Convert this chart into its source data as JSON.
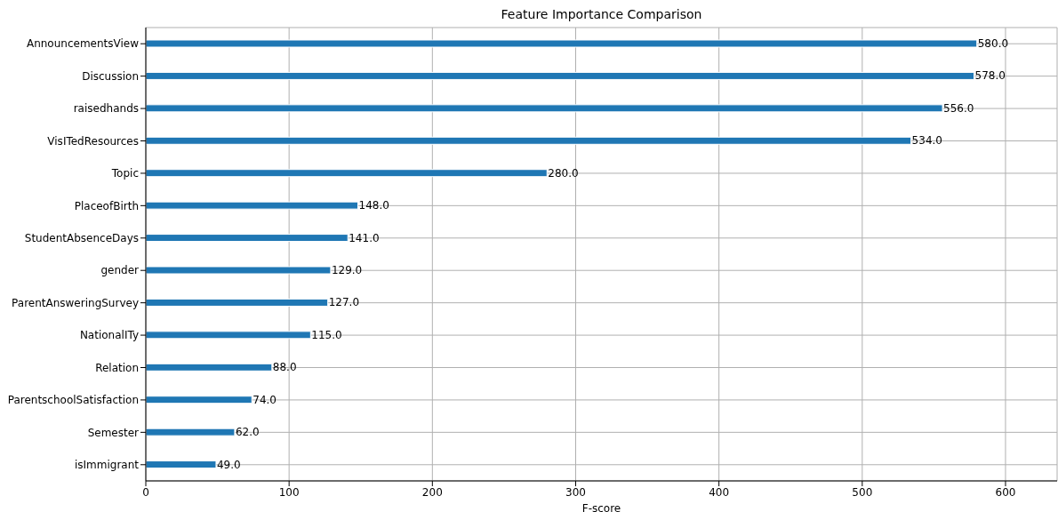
{
  "chart_data": {
    "type": "bar",
    "orientation": "horizontal",
    "title": "Feature Importance Comparison",
    "xlabel": "F-score",
    "categories": [
      "AnnouncementsView",
      "Discussion",
      "raisedhands",
      "VisITedResources",
      "Topic",
      "PlaceofBirth",
      "StudentAbsenceDays",
      "gender",
      "ParentAnsweringSurvey",
      "NationalITy",
      "Relation",
      "ParentschoolSatisfaction",
      "Semester",
      "isImmigrant"
    ],
    "values": [
      580,
      578,
      556,
      534,
      280,
      148,
      141,
      129,
      127,
      115,
      88,
      74,
      62,
      49
    ],
    "value_labels": [
      "580.0",
      "578.0",
      "556.0",
      "534.0",
      "280.0",
      "148.0",
      "141.0",
      "129.0",
      "127.0",
      "115.0",
      "88.0",
      "74.0",
      "62.0",
      "49.0"
    ],
    "color": "#1f77b4",
    "xlim": [
      0,
      636
    ],
    "xticks": [
      0,
      100,
      200,
      300,
      400,
      500,
      600
    ],
    "grid": true,
    "legend": false
  }
}
